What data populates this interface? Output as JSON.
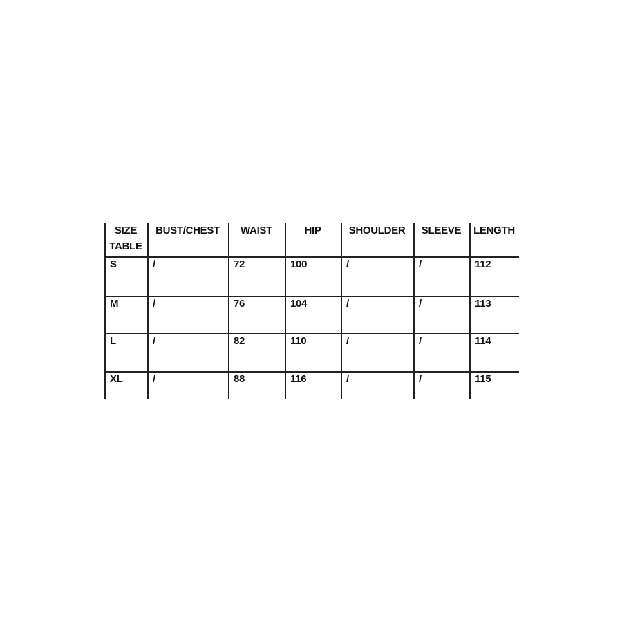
{
  "table": {
    "headers": [
      "SIZE TABLE",
      "BUST/CHEST",
      "WAIST",
      "HIP",
      "SHOULDER",
      "SLEEVE",
      "LENGTH"
    ],
    "header_lines": [
      [
        "SIZE",
        "TABLE"
      ]
    ],
    "rows": [
      [
        "S",
        "/",
        "72",
        "100",
        "/",
        "/",
        "112"
      ],
      [
        "M",
        "/",
        "76",
        "104",
        "/",
        "/",
        "113"
      ],
      [
        "L",
        "/",
        "82",
        "110",
        "/",
        "/",
        "114"
      ],
      [
        "XL",
        "/",
        "88",
        "116",
        "/",
        "/",
        "115"
      ]
    ]
  }
}
